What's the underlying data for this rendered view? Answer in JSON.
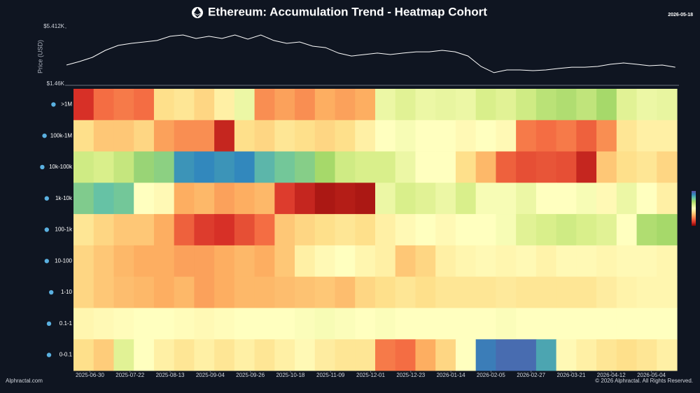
{
  "header": {
    "title": "Ethereum: Accumulation Trend - Heatmap Cohort",
    "date": "2026-05-18"
  },
  "footer": {
    "source": "Alphractal.com",
    "copyright": "© 2026 Alphractal. All Rights Reserved."
  },
  "chart_data": [
    {
      "type": "line",
      "ylabel": "Price (USD)",
      "color": "#ffffff",
      "xlim": [
        "2025-06-21",
        "2026-05-18"
      ],
      "ylim": [
        1460,
        5412
      ],
      "yticks": [
        {
          "value": 5412,
          "label": "$5.412K"
        },
        {
          "value": 1460,
          "label": "$1.46K"
        }
      ],
      "x": [
        "2025-06-21",
        "2025-06-28",
        "2025-07-05",
        "2025-07-12",
        "2025-07-19",
        "2025-07-26",
        "2025-08-02",
        "2025-08-09",
        "2025-08-16",
        "2025-08-23",
        "2025-08-30",
        "2025-09-06",
        "2025-09-13",
        "2025-09-20",
        "2025-09-27",
        "2025-10-04",
        "2025-10-11",
        "2025-10-18",
        "2025-10-25",
        "2025-11-01",
        "2025-11-08",
        "2025-11-15",
        "2025-11-22",
        "2025-11-29",
        "2025-12-06",
        "2025-12-13",
        "2025-12-20",
        "2025-12-27",
        "2026-01-03",
        "2026-01-10",
        "2026-01-17",
        "2026-01-24",
        "2026-01-31",
        "2026-02-07",
        "2026-02-14",
        "2026-02-21",
        "2026-02-28",
        "2026-03-07",
        "2026-03-14",
        "2026-03-21",
        "2026-03-28",
        "2026-04-04",
        "2026-04-11",
        "2026-04-18",
        "2026-04-25",
        "2026-05-02",
        "2026-05-09",
        "2026-05-16"
      ],
      "values": [
        2860,
        3100,
        3390,
        3870,
        4210,
        4350,
        4450,
        4550,
        4840,
        4930,
        4690,
        4840,
        4690,
        4930,
        4640,
        4930,
        4550,
        4350,
        4450,
        4160,
        4060,
        3680,
        3480,
        3580,
        3680,
        3580,
        3680,
        3770,
        3770,
        3870,
        3770,
        3480,
        2760,
        2330,
        2520,
        2520,
        2470,
        2520,
        2620,
        2710,
        2710,
        2760,
        2910,
        3000,
        2910,
        2810,
        2860,
        2710
      ]
    },
    {
      "type": "heatmap",
      "xlim": [
        "2025-06-21",
        "2026-05-18"
      ],
      "xticks": [
        "2025-06-30",
        "2025-07-22",
        "2025-08-13",
        "2025-09-04",
        "2025-09-26",
        "2025-10-18",
        "2025-11-09",
        "2025-12-01",
        "2025-12-23",
        "2026-01-14",
        "2026-02-05",
        "2026-02-27",
        "2026-03-21",
        "2026-04-12",
        "2026-05-04"
      ],
      "vlim": [
        0,
        1
      ],
      "colormap": [
        "#7f0000",
        "#d73027",
        "#f46d43",
        "#fdae61",
        "#fee08b",
        "#ffffbf",
        "#d9ef8b",
        "#a6d96a",
        "#66c2a5",
        "#3288bd",
        "#5e4fa2"
      ],
      "rows": [
        {
          "name": ">1M",
          "values": [
            0.1,
            0.2,
            0.22,
            0.2,
            0.4,
            0.42,
            0.38,
            0.45,
            0.55,
            0.25,
            0.28,
            0.25,
            0.3,
            0.28,
            0.3,
            0.55,
            0.58,
            0.55,
            0.56,
            0.55,
            0.6,
            0.58,
            0.62,
            0.66,
            0.68,
            0.65,
            0.7,
            0.58,
            0.55,
            0.56
          ]
        },
        {
          "name": "100k-1M",
          "values": [
            0.4,
            0.35,
            0.35,
            0.38,
            0.28,
            0.25,
            0.25,
            0.08,
            0.4,
            0.38,
            0.42,
            0.4,
            0.38,
            0.4,
            0.45,
            0.5,
            0.52,
            0.5,
            0.5,
            0.48,
            0.5,
            0.48,
            0.22,
            0.2,
            0.22,
            0.18,
            0.25,
            0.42,
            0.45,
            0.45
          ]
        },
        {
          "name": "10k-100k",
          "values": [
            0.62,
            0.6,
            0.64,
            0.72,
            0.74,
            0.88,
            0.9,
            0.88,
            0.9,
            0.82,
            0.78,
            0.75,
            0.7,
            0.62,
            0.6,
            0.6,
            0.55,
            0.5,
            0.5,
            0.4,
            0.32,
            0.18,
            0.15,
            0.16,
            0.15,
            0.08,
            0.35,
            0.4,
            0.42,
            0.38
          ]
        },
        {
          "name": "1k-10k",
          "values": [
            0.76,
            0.8,
            0.78,
            0.5,
            0.48,
            0.3,
            0.32,
            0.28,
            0.3,
            0.32,
            0.12,
            0.08,
            0.05,
            0.06,
            0.05,
            0.55,
            0.6,
            0.58,
            0.55,
            0.6,
            0.52,
            0.52,
            0.55,
            0.5,
            0.5,
            0.52,
            0.48,
            0.55,
            0.5,
            0.45
          ]
        },
        {
          "name": "100-1k",
          "values": [
            0.42,
            0.38,
            0.35,
            0.35,
            0.3,
            0.18,
            0.12,
            0.1,
            0.15,
            0.2,
            0.35,
            0.38,
            0.4,
            0.42,
            0.4,
            0.45,
            0.48,
            0.5,
            0.48,
            0.5,
            0.5,
            0.52,
            0.58,
            0.6,
            0.62,
            0.6,
            0.58,
            0.5,
            0.68,
            0.7
          ]
        },
        {
          "name": "10-100",
          "values": [
            0.38,
            0.35,
            0.32,
            0.3,
            0.3,
            0.28,
            0.28,
            0.3,
            0.32,
            0.3,
            0.35,
            0.45,
            0.48,
            0.5,
            0.47,
            0.45,
            0.35,
            0.38,
            0.45,
            0.47,
            0.48,
            0.47,
            0.48,
            0.46,
            0.48,
            0.48,
            0.47,
            0.48,
            0.48,
            0.47
          ]
        },
        {
          "name": "1-10",
          "values": [
            0.38,
            0.35,
            0.33,
            0.32,
            0.3,
            0.32,
            0.28,
            0.3,
            0.32,
            0.32,
            0.33,
            0.34,
            0.35,
            0.33,
            0.38,
            0.4,
            0.42,
            0.4,
            0.42,
            0.42,
            0.42,
            0.43,
            0.42,
            0.42,
            0.42,
            0.42,
            0.44,
            0.46,
            0.47,
            0.47
          ]
        },
        {
          "name": "0.1-1",
          "values": [
            0.47,
            0.48,
            0.49,
            0.5,
            0.5,
            0.49,
            0.48,
            0.49,
            0.5,
            0.5,
            0.5,
            0.51,
            0.52,
            0.51,
            0.5,
            0.51,
            0.5,
            0.5,
            0.5,
            0.5,
            0.5,
            0.51,
            0.5,
            0.5,
            0.5,
            0.5,
            0.5,
            0.5,
            0.5,
            0.5
          ]
        },
        {
          "name": "0-0.1",
          "values": [
            0.4,
            0.36,
            0.58,
            0.5,
            0.45,
            0.42,
            0.45,
            0.42,
            0.45,
            0.42,
            0.45,
            0.48,
            0.44,
            0.42,
            0.42,
            0.22,
            0.2,
            0.3,
            0.38,
            0.5,
            0.92,
            0.95,
            0.95,
            0.85,
            0.48,
            0.45,
            0.42,
            0.4,
            0.42,
            0.45
          ]
        }
      ]
    }
  ]
}
